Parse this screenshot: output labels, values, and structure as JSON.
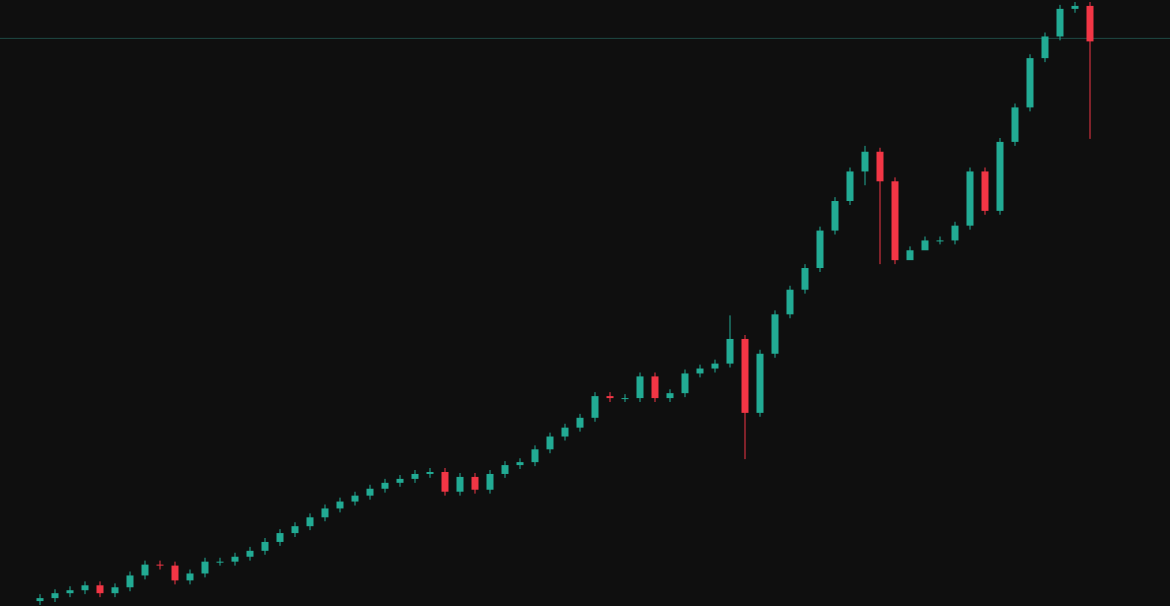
{
  "chart_data": {
    "type": "candlestick",
    "categories": [
      null,
      null,
      null,
      null,
      null,
      null,
      null,
      null,
      null,
      null,
      null,
      null,
      null,
      null,
      null,
      null,
      null,
      null,
      null,
      null,
      null,
      null,
      null,
      null,
      null,
      null,
      null,
      null,
      null,
      null,
      null,
      null,
      null,
      null,
      null,
      null,
      null,
      null,
      null,
      null,
      null,
      null,
      null,
      null,
      null,
      null,
      null,
      null,
      null,
      null,
      null,
      null,
      null,
      null,
      null,
      null,
      null,
      null,
      null,
      null,
      null,
      null,
      null,
      null,
      null,
      null,
      null,
      null,
      null,
      null,
      null
    ],
    "open": [
      0,
      3,
      8,
      11,
      16,
      8,
      14,
      26,
      37,
      36,
      21,
      28,
      40,
      40,
      45,
      51,
      60,
      69,
      76,
      85,
      94,
      101,
      107,
      114,
      120,
      124,
      129,
      131,
      111,
      126,
      113,
      129,
      138,
      141,
      154,
      167,
      176,
      186,
      208,
      206,
      206,
      228,
      206,
      211,
      231,
      236,
      241,
      266,
      191,
      251,
      291,
      316,
      338,
      376,
      406,
      436,
      456,
      426,
      346,
      356,
      366,
      366,
      381,
      436,
      396,
      466,
      501,
      551,
      573,
      601,
      604
    ],
    "high": [
      7,
      12,
      15,
      20,
      20,
      18,
      30,
      41,
      41,
      40,
      32,
      44,
      44,
      49,
      55,
      64,
      73,
      80,
      89,
      98,
      105,
      111,
      118,
      124,
      128,
      133,
      135,
      135,
      130,
      130,
      133,
      142,
      145,
      158,
      171,
      180,
      190,
      212,
      212,
      210,
      232,
      232,
      215,
      235,
      240,
      245,
      290,
      270,
      255,
      295,
      320,
      342,
      380,
      410,
      440,
      462,
      460,
      430,
      360,
      370,
      370,
      385,
      440,
      440,
      470,
      505,
      555,
      577,
      605,
      608,
      608
    ],
    "low": [
      -4,
      -1,
      4,
      7,
      4,
      4,
      10,
      22,
      32,
      17,
      17,
      24,
      36,
      36,
      41,
      47,
      56,
      65,
      72,
      81,
      90,
      97,
      103,
      110,
      116,
      120,
      125,
      107,
      107,
      109,
      109,
      125,
      134,
      137,
      150,
      163,
      172,
      182,
      202,
      202,
      202,
      202,
      202,
      207,
      227,
      232,
      237,
      144,
      187,
      247,
      287,
      312,
      334,
      372,
      402,
      422,
      342,
      342,
      352,
      362,
      362,
      362,
      377,
      392,
      392,
      462,
      497,
      547,
      569,
      597,
      469
    ],
    "close": [
      3,
      8,
      11,
      16,
      8,
      14,
      26,
      37,
      36,
      21,
      28,
      40,
      40,
      45,
      51,
      60,
      69,
      76,
      85,
      94,
      101,
      107,
      114,
      120,
      124,
      129,
      131,
      111,
      126,
      113,
      129,
      138,
      141,
      154,
      167,
      176,
      186,
      208,
      206,
      206,
      228,
      206,
      211,
      231,
      236,
      241,
      266,
      191,
      251,
      291,
      316,
      338,
      376,
      406,
      436,
      456,
      426,
      346,
      356,
      366,
      366,
      381,
      436,
      396,
      466,
      501,
      551,
      573,
      601,
      604,
      568
    ],
    "up_color": "#22ab94",
    "down_color": "#f23645",
    "price_line": 571,
    "price_line_color": "#1f4a44",
    "ylim": [
      -5,
      610
    ]
  }
}
